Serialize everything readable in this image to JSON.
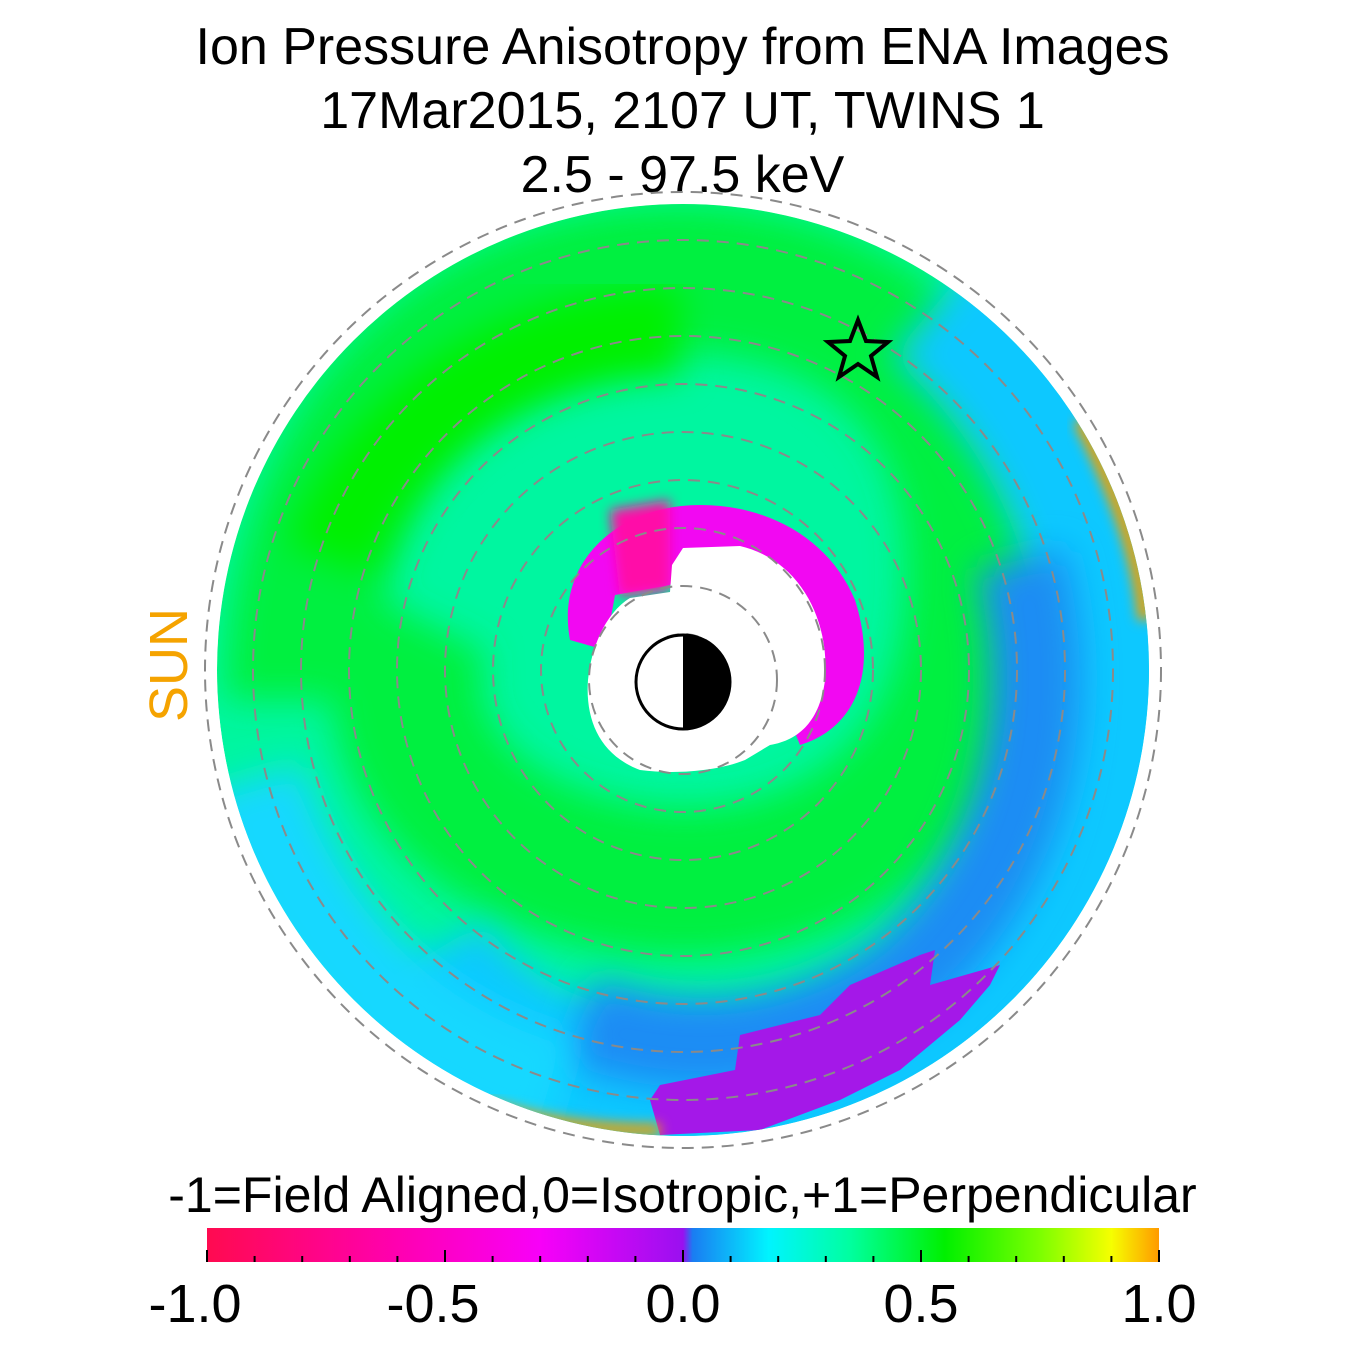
{
  "chart_data": {
    "type": "heatmap",
    "title": "Ion Pressure Anisotropy from  ENA Images",
    "subtitle": "17Mar2015, 2107 UT,  TWINS 1",
    "subtitle2": "2.5 - 97.5 keV",
    "side_label": "SUN",
    "projection": "polar equatorial-plane map, Earth at center, Sun to the left",
    "colorbar": {
      "title": "-1=Field Aligned,0=Isotropic,+1=Perpendicular",
      "range": [
        -1.0,
        1.0
      ],
      "tick_labels": [
        "-1.0",
        "-0.5",
        "0.0",
        "0.5",
        "1.0"
      ],
      "tick_values": [
        -1.0,
        -0.5,
        0.0,
        0.5,
        1.0
      ],
      "colormap": [
        {
          "value": -1.0,
          "color": "#ff0a50"
        },
        {
          "value": -0.6,
          "color": "#ff00b0"
        },
        {
          "value": -0.3,
          "color": "#f800f8"
        },
        {
          "value": 0.0,
          "color": "#9a10f0"
        },
        {
          "value": 0.02,
          "color": "#1a7cf2"
        },
        {
          "value": 0.18,
          "color": "#00f4ff"
        },
        {
          "value": 0.35,
          "color": "#00ffa0"
        },
        {
          "value": 0.55,
          "color": "#00f000"
        },
        {
          "value": 0.75,
          "color": "#7cff00"
        },
        {
          "value": 0.9,
          "color": "#f6ff00"
        },
        {
          "value": 1.0,
          "color": "#ff9a00"
        }
      ]
    },
    "regions": [
      {
        "description": "dawn/dayside ring",
        "anisotropy": 0.45
      },
      {
        "description": "inner dusk arc near Earth",
        "anisotropy": -0.35
      },
      {
        "description": "nightside/dusk outer band",
        "anisotropy": 0.15
      },
      {
        "description": "outer dusk patch",
        "anisotropy": -0.05
      },
      {
        "description": "outer rim edges",
        "anisotropy": 0.95
      }
    ],
    "grid": "dashed concentric circles",
    "marker": "star"
  },
  "colors": {
    "sun_label": "#f5a300",
    "grid": "#8a8a8a"
  }
}
